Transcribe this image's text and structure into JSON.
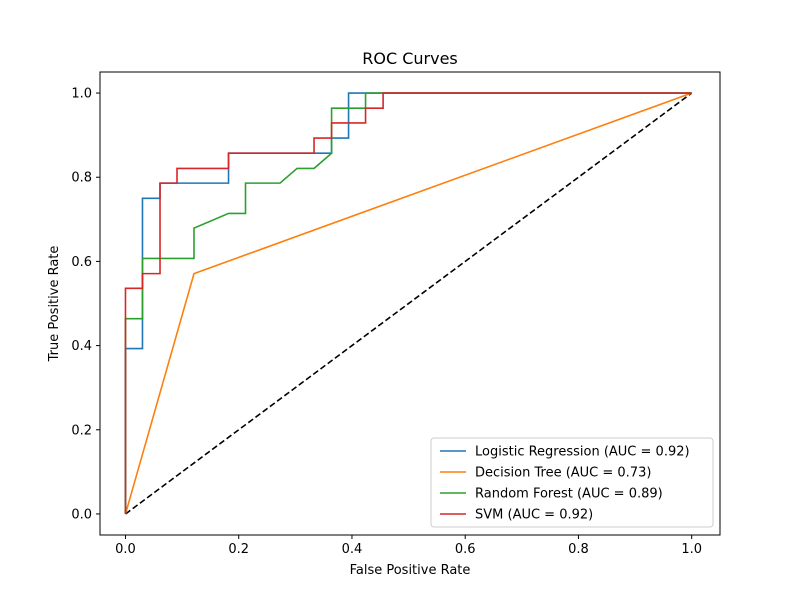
{
  "chart_data": {
    "type": "line",
    "title": "ROC Curves",
    "xlabel": "False Positive Rate",
    "ylabel": "True Positive Rate",
    "xlim": [
      -0.045,
      1.05
    ],
    "ylim": [
      -0.05,
      1.05
    ],
    "xticks": [
      0.0,
      0.2,
      0.4,
      0.6,
      0.8,
      1.0
    ],
    "yticks": [
      0.0,
      0.2,
      0.4,
      0.6,
      0.8,
      1.0
    ],
    "xtick_labels": [
      "0.0",
      "0.2",
      "0.4",
      "0.6",
      "0.8",
      "1.0"
    ],
    "ytick_labels": [
      "0.0",
      "0.2",
      "0.4",
      "0.6",
      "0.8",
      "1.0"
    ],
    "grid": false,
    "legend_position": "lower-right",
    "series": [
      {
        "name": "Logistic Regression (AUC = 0.92)",
        "color": "#1f77b4",
        "points": [
          [
            0,
            0
          ],
          [
            0,
            0.393
          ],
          [
            0.03,
            0.393
          ],
          [
            0.03,
            0.75
          ],
          [
            0.061,
            0.75
          ],
          [
            0.061,
            0.786
          ],
          [
            0.182,
            0.786
          ],
          [
            0.182,
            0.857
          ],
          [
            0.364,
            0.857
          ],
          [
            0.364,
            0.893
          ],
          [
            0.394,
            0.893
          ],
          [
            0.394,
            1.0
          ],
          [
            1.0,
            1.0
          ]
        ]
      },
      {
        "name": "Decision Tree (AUC = 0.73)",
        "color": "#ff7f0e",
        "points": [
          [
            0,
            0
          ],
          [
            0.121,
            0.571
          ],
          [
            1.0,
            1.0
          ]
        ]
      },
      {
        "name": "Random Forest (AUC = 0.89)",
        "color": "#2ca02c",
        "points": [
          [
            0,
            0
          ],
          [
            0,
            0.464
          ],
          [
            0.03,
            0.464
          ],
          [
            0.03,
            0.607
          ],
          [
            0.121,
            0.607
          ],
          [
            0.121,
            0.679
          ],
          [
            0.182,
            0.714
          ],
          [
            0.212,
            0.714
          ],
          [
            0.212,
            0.786
          ],
          [
            0.273,
            0.786
          ],
          [
            0.303,
            0.821
          ],
          [
            0.333,
            0.821
          ],
          [
            0.364,
            0.857
          ],
          [
            0.364,
            0.964
          ],
          [
            0.424,
            0.964
          ],
          [
            0.424,
            1.0
          ],
          [
            1.0,
            1.0
          ]
        ]
      },
      {
        "name": "SVM (AUC = 0.92)",
        "color": "#d62728",
        "points": [
          [
            0,
            0
          ],
          [
            0,
            0.536
          ],
          [
            0.03,
            0.536
          ],
          [
            0.03,
            0.571
          ],
          [
            0.061,
            0.571
          ],
          [
            0.061,
            0.786
          ],
          [
            0.091,
            0.786
          ],
          [
            0.091,
            0.821
          ],
          [
            0.182,
            0.821
          ],
          [
            0.182,
            0.857
          ],
          [
            0.333,
            0.857
          ],
          [
            0.333,
            0.893
          ],
          [
            0.364,
            0.893
          ],
          [
            0.364,
            0.929
          ],
          [
            0.424,
            0.929
          ],
          [
            0.424,
            0.964
          ],
          [
            0.455,
            0.964
          ],
          [
            0.455,
            1.0
          ],
          [
            1.0,
            1.0
          ]
        ]
      }
    ],
    "reference_line": {
      "color": "#000000",
      "style": "dashed",
      "points": [
        [
          0,
          0
        ],
        [
          1,
          1
        ]
      ]
    }
  }
}
